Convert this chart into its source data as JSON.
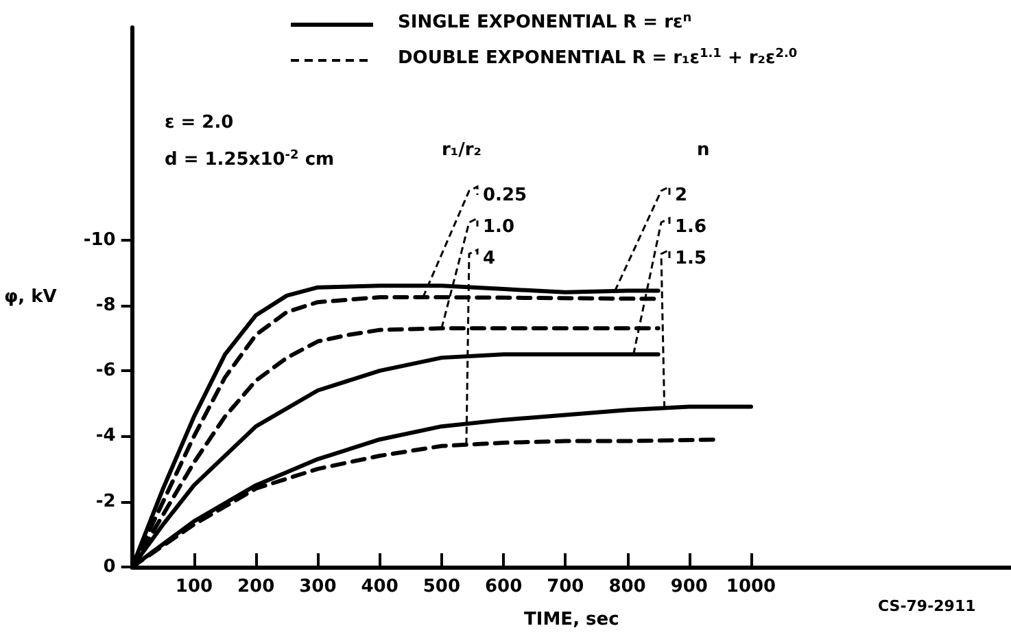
{
  "chart_data": {
    "type": "line",
    "xlabel": "TIME, sec",
    "ylabel": "φ, kV",
    "xlim": [
      0,
      1420
    ],
    "ylim": [
      0,
      -16.5
    ],
    "xticks": [
      100,
      200,
      300,
      400,
      500,
      600,
      700,
      800,
      900,
      1000
    ],
    "yticks": [
      0,
      -2,
      -4,
      -6,
      -8,
      -10
    ],
    "grid": false,
    "marker": "none",
    "annotations": [
      "SINGLE EXPONENTIAL R = rε$^{n}$",
      "DOUBLE EXPONENTIAL R = r₁ε$^{1.1}$ + r₂ε$^{2.0}$",
      "ε = 2.0",
      "d = 1.25x10$^{-2}$ cm",
      "r₁/r₂",
      "n",
      "CS-79-2911"
    ],
    "series": [
      {
        "name": "2",
        "color": "#000000",
        "line_style": "solid",
        "x": [
          0,
          50,
          100,
          150,
          200,
          250,
          300,
          400,
          500,
          600,
          700,
          800,
          850
        ],
        "values": [
          0,
          -2.4,
          -4.6,
          -6.5,
          -7.7,
          -8.3,
          -8.55,
          -8.6,
          -8.6,
          -8.5,
          -8.4,
          -8.45,
          -8.45
        ]
      },
      {
        "name": "1.6",
        "color": "#000000",
        "line_style": "solid",
        "x": [
          0,
          50,
          100,
          200,
          300,
          400,
          500,
          600,
          700,
          850
        ],
        "values": [
          0,
          -1.3,
          -2.5,
          -4.3,
          -5.4,
          -6.0,
          -6.4,
          -6.5,
          -6.5,
          -6.5
        ]
      },
      {
        "name": "1.5",
        "color": "#000000",
        "line_style": "solid",
        "x": [
          0,
          100,
          200,
          300,
          400,
          500,
          600,
          700,
          800,
          900,
          1000
        ],
        "values": [
          0,
          -1.4,
          -2.5,
          -3.3,
          -3.9,
          -4.3,
          -4.5,
          -4.65,
          -4.8,
          -4.9,
          -4.9
        ]
      },
      {
        "name": "0.25",
        "color": "#000000",
        "line_style": "dashed",
        "x": [
          0,
          50,
          100,
          150,
          200,
          250,
          300,
          400,
          500,
          850
        ],
        "values": [
          0,
          -2.0,
          -4.0,
          -5.8,
          -7.1,
          -7.8,
          -8.1,
          -8.25,
          -8.25,
          -8.2
        ]
      },
      {
        "name": "1.0",
        "color": "#000000",
        "line_style": "dashed",
        "x": [
          0,
          50,
          100,
          150,
          200,
          250,
          300,
          350,
          400,
          500,
          850
        ],
        "values": [
          0,
          -1.6,
          -3.2,
          -4.6,
          -5.7,
          -6.4,
          -6.9,
          -7.1,
          -7.25,
          -7.3,
          -7.3
        ]
      },
      {
        "name": "4",
        "color": "#000000",
        "line_style": "dashed",
        "x": [
          0,
          100,
          200,
          300,
          400,
          500,
          600,
          700,
          800,
          950
        ],
        "values": [
          0,
          -1.3,
          -2.4,
          -3.0,
          -3.4,
          -3.7,
          -3.8,
          -3.85,
          -3.85,
          -3.9
        ]
      }
    ]
  }
}
